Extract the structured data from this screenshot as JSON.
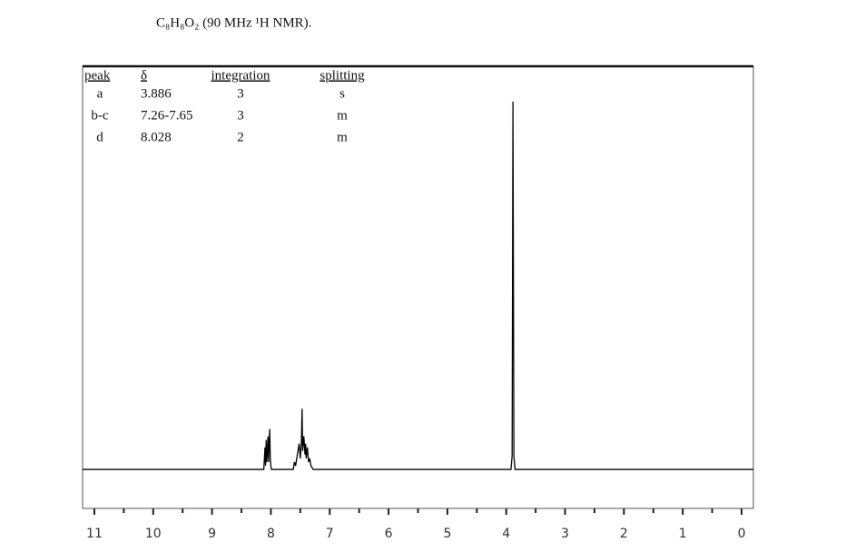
{
  "chart_data": {
    "type": "line",
    "title": "C₈H₈O₂  (90 MHz ¹H NMR).",
    "x": [
      11.2,
      8.12,
      8.1,
      8.09,
      8.08,
      8.07,
      8.06,
      8.05,
      8.04,
      8.03,
      8.02,
      8.01,
      8.0,
      7.99,
      7.97,
      7.62,
      7.6,
      7.58,
      7.55,
      7.52,
      7.5,
      7.48,
      7.47,
      7.46,
      7.44,
      7.42,
      7.41,
      7.4,
      7.38,
      7.36,
      7.34,
      7.32,
      7.3,
      7.28,
      3.92,
      3.9,
      3.886,
      3.87,
      3.85,
      -0.2
    ],
    "values": [
      0,
      0,
      6,
      1,
      8,
      2,
      5,
      9,
      2,
      7,
      11,
      3,
      1,
      0,
      0,
      0,
      2,
      1,
      4,
      7,
      3,
      8,
      16.5,
      5,
      9,
      4,
      7,
      3,
      6,
      2,
      3,
      1,
      0.5,
      0,
      0,
      3.7,
      100,
      3.7,
      0,
      0
    ],
    "color": "#000000",
    "xlim": [
      11.2,
      -0.2
    ],
    "ylim": [
      -10.6,
      109.6
    ],
    "xticks": [
      11,
      10,
      9,
      8,
      7,
      6,
      5,
      4,
      3,
      2,
      1,
      0
    ],
    "xticks_minor": [
      10.5,
      9.5,
      8.5,
      7.5,
      6.5,
      5.5,
      4.5,
      3.5,
      2.5,
      1.5,
      0.5
    ],
    "annotation_table": {
      "columns": [
        "peak",
        "δ",
        "integration",
        "splitting"
      ],
      "rows": [
        [
          "a",
          "3.886",
          "3",
          "s"
        ],
        [
          "b-c",
          "7.26-7.65",
          "3",
          "m"
        ],
        [
          "d",
          "8.028",
          "2",
          "m"
        ]
      ]
    }
  }
}
